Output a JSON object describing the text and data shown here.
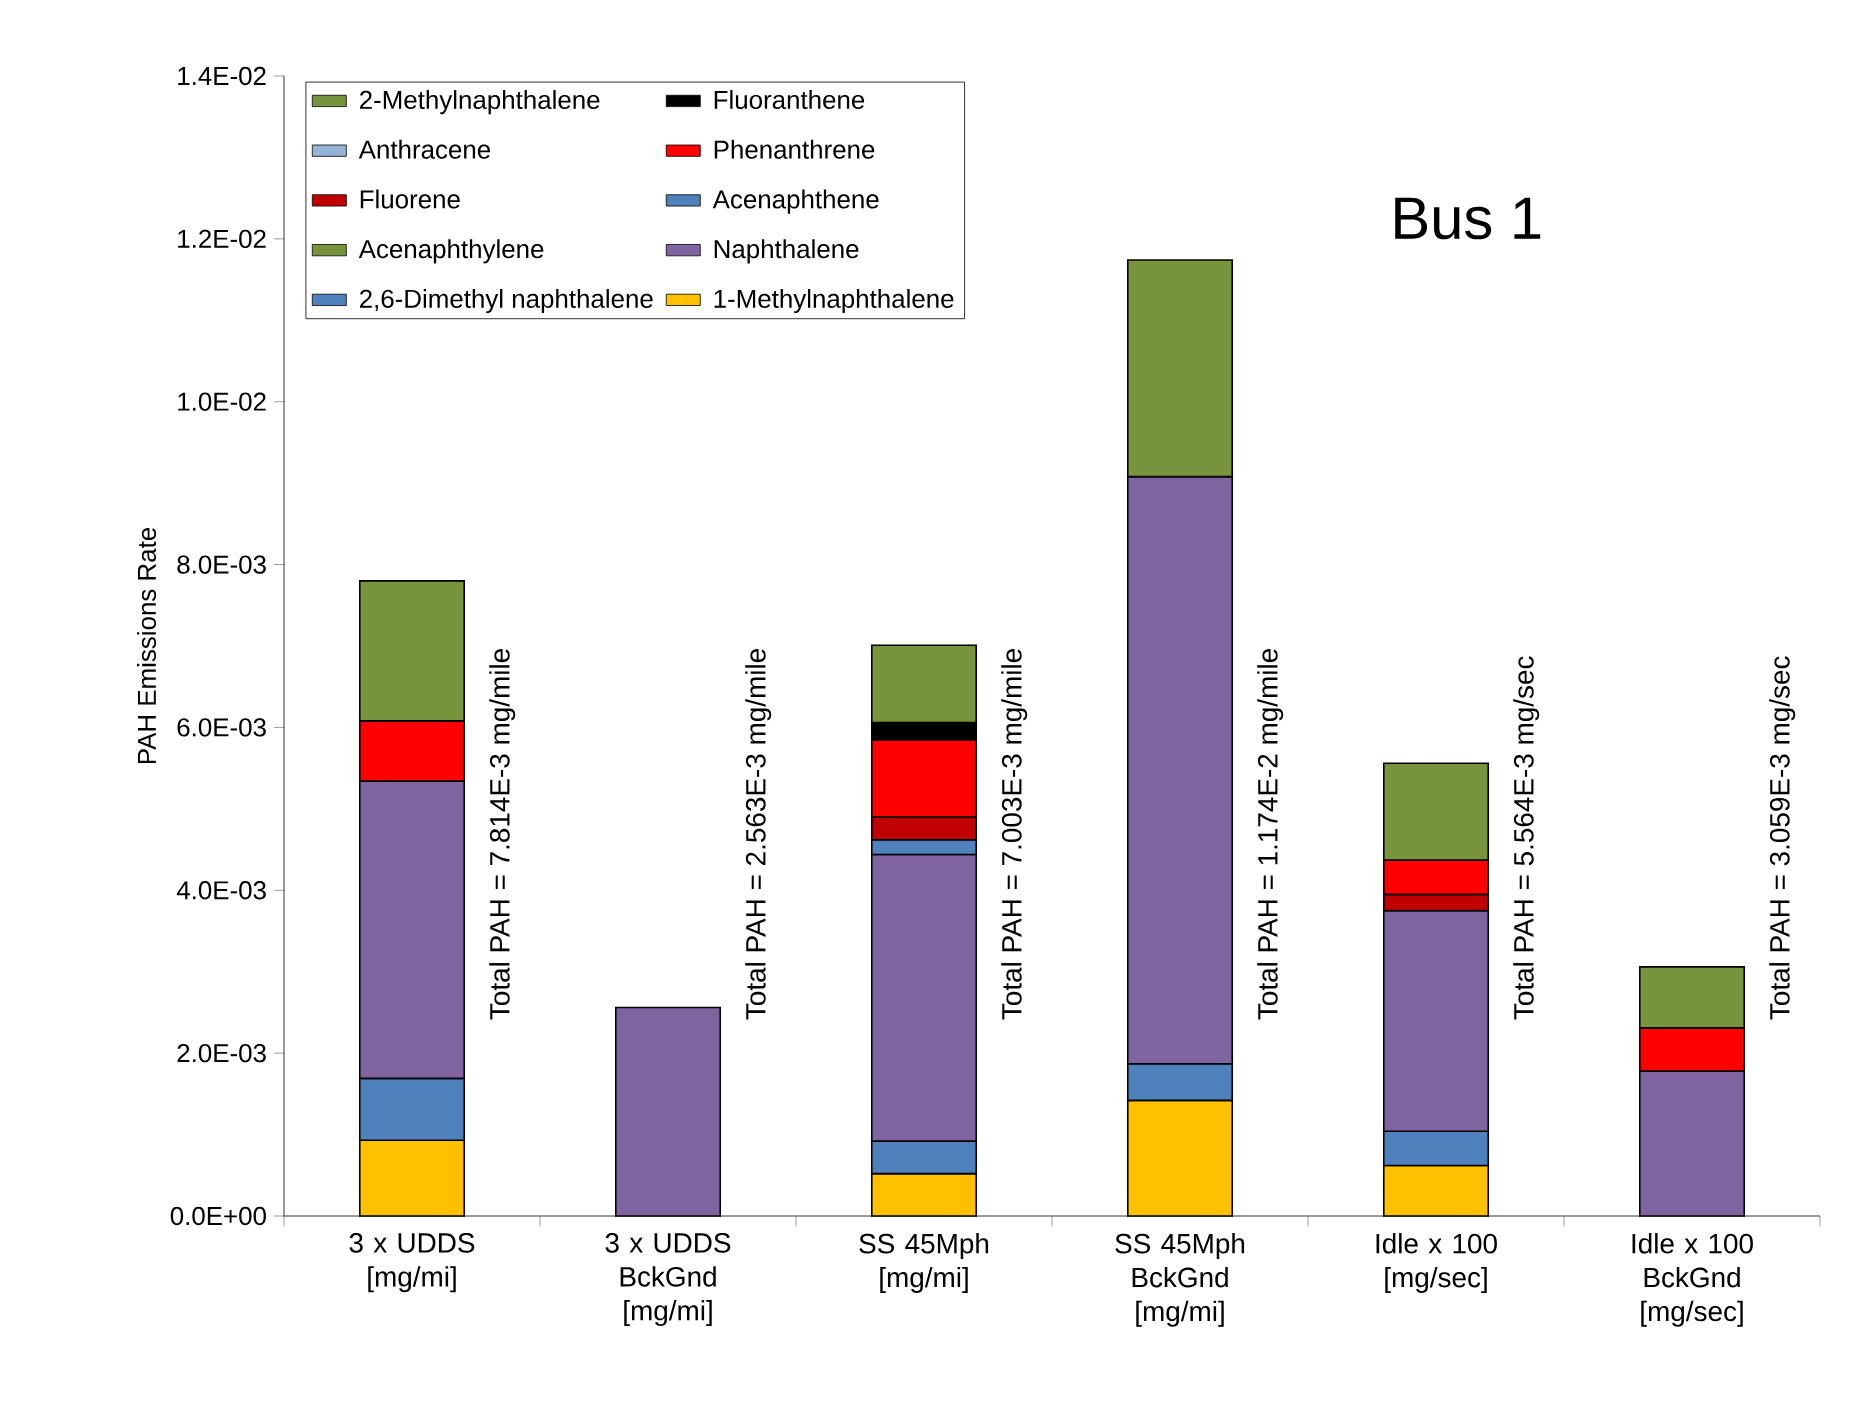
{
  "chart_data": {
    "type": "bar",
    "stacked": true,
    "ylabel": "PAH Emissions Rate",
    "categories": [
      "3 x UDDS [mg/mi]",
      "3 x UDDS BckGnd [mg/mi]",
      "SS 45Mph [mg/mi]",
      "SS 45Mph BckGnd [mg/mi]",
      "Idle x 100 [mg/sec]",
      "Idle x 100 BckGnd [mg/sec]"
    ],
    "ylim": [
      0,
      0.014
    ],
    "yticks": [
      {
        "value": 0,
        "label": "0.0E+00"
      },
      {
        "value": 0.002,
        "label": "2.0E-03"
      },
      {
        "value": 0.004,
        "label": "4.0E-03"
      },
      {
        "value": 0.006,
        "label": "6.0E-03"
      },
      {
        "value": 0.008,
        "label": "8.0E-03"
      },
      {
        "value": 0.01,
        "label": "1.0E-02"
      },
      {
        "value": 0.012,
        "label": "1.2E-02"
      },
      {
        "value": 0.014,
        "label": "1.4E-02"
      }
    ],
    "legend": "top left",
    "series": [
      {
        "name": "1-Methylnaphthalene",
        "color": "#ffc000",
        "values": [
          0.00093,
          null,
          0.00052,
          0.00142,
          0.00062,
          null
        ]
      },
      {
        "name": "2,6-Dimethyl naphthalene",
        "color": "#4f81bd",
        "values": [
          0.00076,
          null,
          0.0004,
          0.00045,
          0.00042,
          null
        ]
      },
      {
        "name": "Naphthalene",
        "color": "#8064a2",
        "values": [
          0.00365,
          0.00256,
          0.00352,
          0.00721,
          0.00271,
          0.00178
        ]
      },
      {
        "name": "Acenaphthylene",
        "color": "#77933c",
        "values": [
          null,
          null,
          null,
          null,
          null,
          null
        ]
      },
      {
        "name": "Acenaphthene",
        "color": "#4f81bd",
        "values": [
          null,
          null,
          0.00018,
          null,
          null,
          null
        ]
      },
      {
        "name": "Fluorene",
        "color": "#c00000",
        "values": [
          null,
          null,
          0.00028,
          null,
          0.0002,
          null
        ]
      },
      {
        "name": "Phenanthrene",
        "color": "#ff0000",
        "values": [
          0.00074,
          null,
          0.00095,
          null,
          0.00042,
          0.00053
        ]
      },
      {
        "name": "Anthracene",
        "color": "#95b3d7",
        "values": [
          null,
          null,
          null,
          null,
          null,
          null
        ]
      },
      {
        "name": "Fluoranthene",
        "color": "#000000",
        "values": [
          null,
          null,
          0.00021,
          null,
          null,
          null
        ]
      },
      {
        "name": "2-Methylnaphthalene",
        "color": "#77933c",
        "values": [
          0.00172,
          null,
          0.00095,
          0.00266,
          0.00119,
          0.00075
        ]
      }
    ],
    "totals": [
      "Total PAH = 7.814E-3 mg/mile",
      "Total PAH = 2.563E-3 mg/mile",
      "Total PAH = 7.003E-3 mg/mile",
      "Total PAH = 1.174E-2 mg/mile",
      "Total PAH = 5.564E-3 mg/sec",
      "Total PAH = 3.059E-3 mg/sec"
    ],
    "annotations": [
      "Bus 1"
    ]
  }
}
